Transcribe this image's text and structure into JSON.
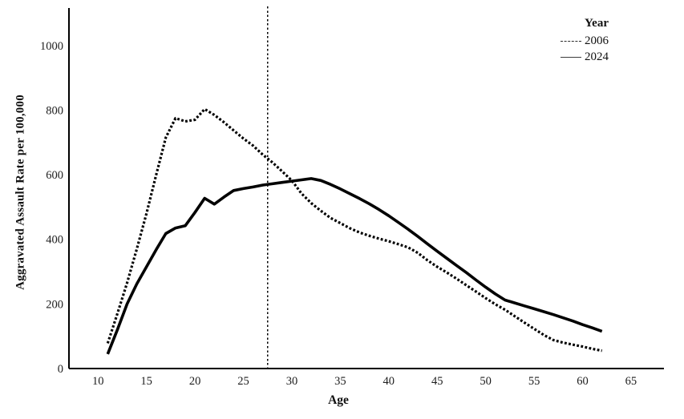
{
  "colors": {
    "background": "#ffffff",
    "ink": "#000000",
    "text": "#1c1c1c"
  },
  "chart_data": {
    "type": "line",
    "title": "",
    "xlabel": "Age",
    "ylabel": "Aggravated Assault Rate per 100,000",
    "x_ticks": [
      10,
      15,
      20,
      25,
      30,
      35,
      40,
      45,
      50,
      55,
      60,
      65
    ],
    "y_ticks": [
      0,
      200,
      400,
      600,
      800,
      1000
    ],
    "xlim": [
      7,
      68.4
    ],
    "ylim": [
      0,
      1116
    ],
    "grid": false,
    "legend": {
      "title": "Year",
      "position": "top-right",
      "entries": [
        {
          "label": "2006",
          "line_style": "dotted"
        },
        {
          "label": "2024",
          "line_style": "solid"
        }
      ]
    },
    "reference_line": {
      "orientation": "vertical",
      "x": 27.5,
      "line_style": "dashed"
    },
    "series": [
      {
        "name": "2006",
        "line_style": "dotted",
        "points": [
          [
            11,
            78
          ],
          [
            12,
            170
          ],
          [
            13,
            265
          ],
          [
            14,
            370
          ],
          [
            15,
            480
          ],
          [
            16,
            600
          ],
          [
            17,
            715
          ],
          [
            18,
            775
          ],
          [
            19,
            765
          ],
          [
            20,
            770
          ],
          [
            21,
            803
          ],
          [
            22,
            785
          ],
          [
            23,
            762
          ],
          [
            24,
            737
          ],
          [
            25,
            712
          ],
          [
            26,
            690
          ],
          [
            27,
            662
          ],
          [
            28,
            638
          ],
          [
            29,
            610
          ],
          [
            30,
            582
          ],
          [
            31,
            542
          ],
          [
            32,
            512
          ],
          [
            33,
            488
          ],
          [
            34,
            466
          ],
          [
            35,
            450
          ],
          [
            36,
            434
          ],
          [
            37,
            421
          ],
          [
            38,
            411
          ],
          [
            39,
            402
          ],
          [
            40,
            394
          ],
          [
            41,
            385
          ],
          [
            42,
            375
          ],
          [
            43,
            358
          ],
          [
            44,
            335
          ],
          [
            45,
            315
          ],
          [
            46,
            297
          ],
          [
            47,
            278
          ],
          [
            48,
            258
          ],
          [
            49,
            238
          ],
          [
            50,
            218
          ],
          [
            51,
            199
          ],
          [
            52,
            182
          ],
          [
            53,
            162
          ],
          [
            54,
            142
          ],
          [
            55,
            123
          ],
          [
            56,
            104
          ],
          [
            57,
            88
          ],
          [
            58,
            80
          ],
          [
            59,
            74
          ],
          [
            60,
            68
          ],
          [
            61,
            61
          ],
          [
            62,
            55
          ]
        ]
      },
      {
        "name": "2024",
        "line_style": "solid",
        "points": [
          [
            11,
            45
          ],
          [
            12,
            120
          ],
          [
            13,
            200
          ],
          [
            14,
            262
          ],
          [
            15,
            315
          ],
          [
            16,
            368
          ],
          [
            17,
            418
          ],
          [
            18,
            435
          ],
          [
            19,
            442
          ],
          [
            20,
            483
          ],
          [
            21,
            527
          ],
          [
            22,
            509
          ],
          [
            23,
            531
          ],
          [
            24,
            551
          ],
          [
            25,
            557
          ],
          [
            26,
            562
          ],
          [
            27,
            568
          ],
          [
            28,
            572
          ],
          [
            29,
            576
          ],
          [
            30,
            580
          ],
          [
            31,
            584
          ],
          [
            32,
            588
          ],
          [
            33,
            582
          ],
          [
            34,
            570
          ],
          [
            35,
            556
          ],
          [
            36,
            541
          ],
          [
            37,
            526
          ],
          [
            38,
            510
          ],
          [
            39,
            492
          ],
          [
            40,
            473
          ],
          [
            41,
            452
          ],
          [
            42,
            431
          ],
          [
            43,
            409
          ],
          [
            44,
            386
          ],
          [
            45,
            363
          ],
          [
            46,
            341
          ],
          [
            47,
            319
          ],
          [
            48,
            297
          ],
          [
            49,
            274
          ],
          [
            50,
            252
          ],
          [
            51,
            231
          ],
          [
            52,
            212
          ],
          [
            53,
            203
          ],
          [
            54,
            194
          ],
          [
            55,
            185
          ],
          [
            56,
            176
          ],
          [
            57,
            167
          ],
          [
            58,
            157
          ],
          [
            59,
            147
          ],
          [
            60,
            136
          ],
          [
            61,
            126
          ],
          [
            62,
            115
          ]
        ]
      }
    ]
  }
}
